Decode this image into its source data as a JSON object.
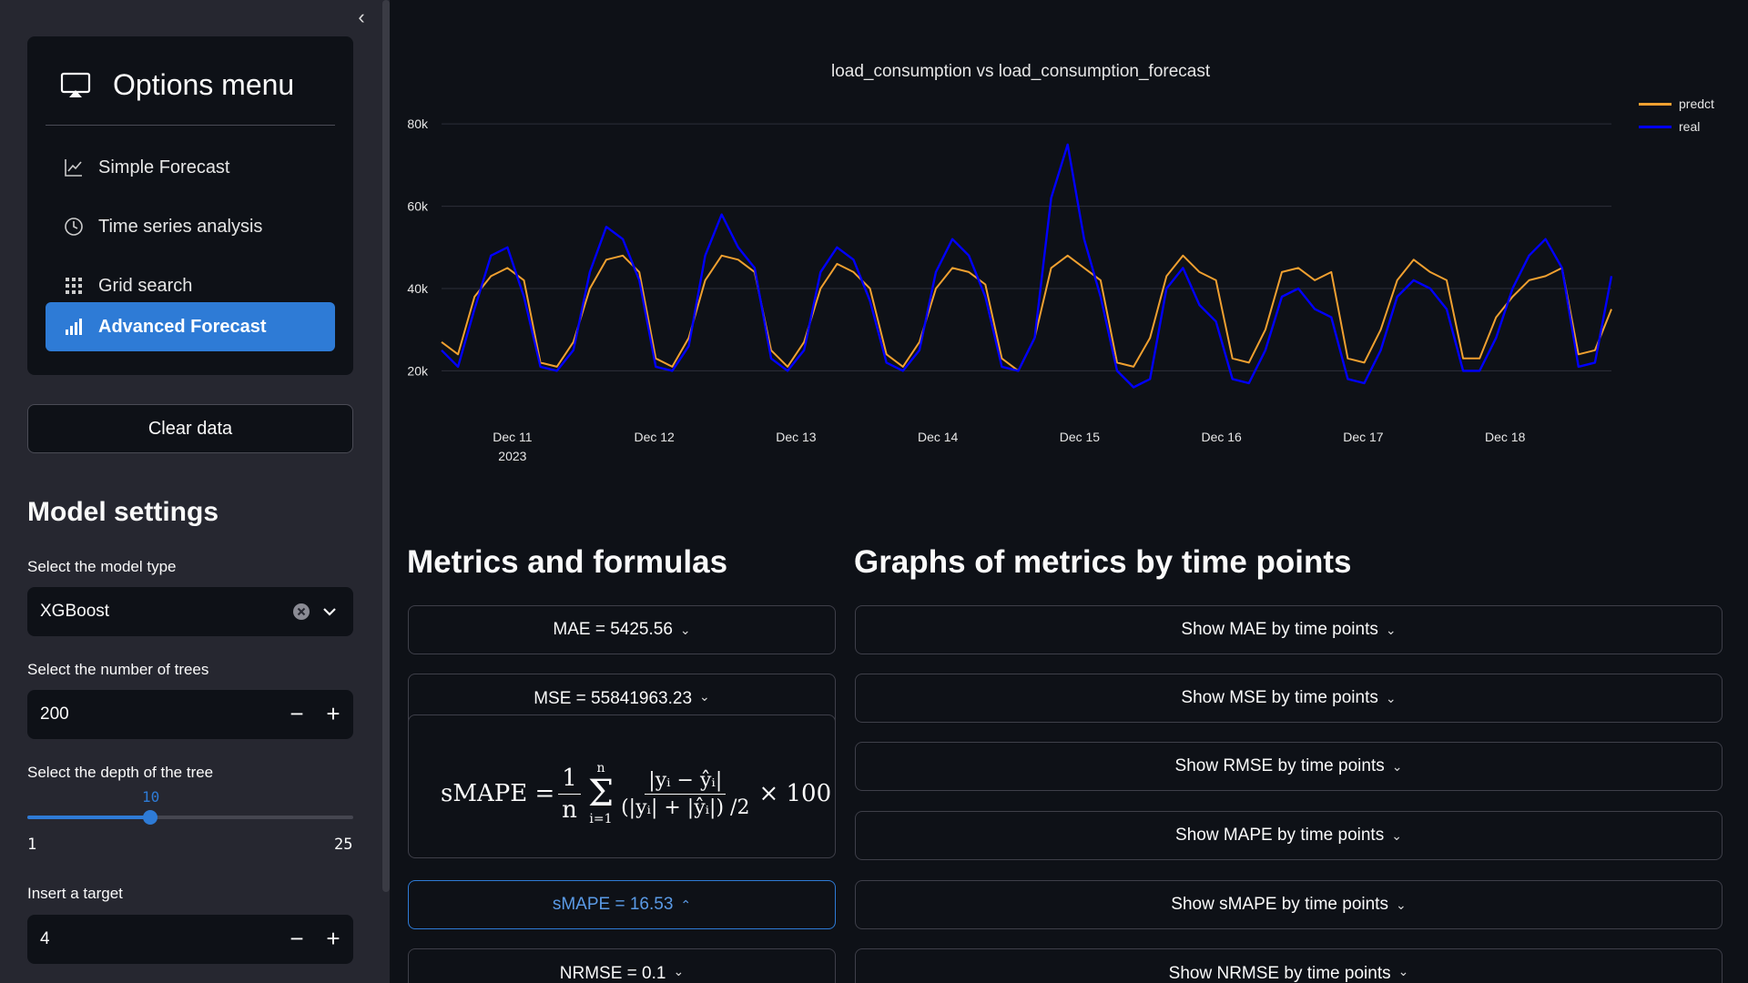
{
  "sidebar": {
    "menu_title": "Options menu",
    "items": [
      {
        "label": "Simple Forecast",
        "icon": "line-chart-icon"
      },
      {
        "label": "Time series analysis",
        "icon": "clock-icon"
      },
      {
        "label": "Grid search",
        "icon": "grid-icon"
      },
      {
        "label": "Advanced Forecast",
        "icon": "bar-chart-icon",
        "active": true
      }
    ],
    "clear_button": "Clear data",
    "model_settings": "Model settings",
    "model_type": {
      "label": "Select the model type",
      "value": "XGBoost"
    },
    "trees": {
      "label": "Select the number of trees",
      "value": "200"
    },
    "depth": {
      "label": "Select the depth of the tree",
      "value": "10",
      "min": "1",
      "max": "25"
    },
    "target": {
      "label": "Insert a target",
      "value": "4"
    }
  },
  "colors": {
    "accent": "#2e7bd6",
    "predict": "#f0a030",
    "real": "#0000ff",
    "background": "#0e1117",
    "sidebar": "#262730"
  },
  "chart_data": {
    "type": "line",
    "title": "load_consumption vs load_consumption_forecast",
    "x_ticks": [
      "Dec 11",
      "Dec 12",
      "Dec 13",
      "Dec 14",
      "Dec 15",
      "Dec 16",
      "Dec 17",
      "Dec 18"
    ],
    "x_year": "2023",
    "x_range": [
      "2023-12-10 12:00",
      "2023-12-18 18:00"
    ],
    "y_ticks": [
      "20k",
      "40k",
      "60k",
      "80k"
    ],
    "ylim": [
      15000,
      88000
    ],
    "grid": true,
    "legend_position": "top-right",
    "series": [
      {
        "name": "predct",
        "color": "#f0a030",
        "values": [
          27000,
          24000,
          38000,
          43000,
          45000,
          42000,
          22000,
          21000,
          27000,
          40000,
          47000,
          48000,
          44000,
          23000,
          21000,
          28000,
          42000,
          48000,
          47000,
          44000,
          25000,
          21000,
          27000,
          40000,
          46000,
          44000,
          40000,
          24000,
          21000,
          27000,
          40000,
          45000,
          44000,
          41000,
          23000,
          20000,
          28000,
          45000,
          48000,
          45000,
          42000,
          22000,
          21000,
          28000,
          43000,
          48000,
          44000,
          42000,
          23000,
          22000,
          30000,
          44000,
          45000,
          42000,
          44000,
          23000,
          22000,
          30000,
          42000,
          47000,
          44000,
          42000,
          23000,
          23000,
          33000,
          38000,
          42000,
          43000,
          45000,
          24000,
          25000,
          35000
        ]
      },
      {
        "name": "real",
        "color": "#0000ff",
        "values": [
          25000,
          21000,
          35000,
          48000,
          50000,
          38000,
          21000,
          20000,
          25000,
          44000,
          55000,
          52000,
          42000,
          21000,
          20000,
          26000,
          48000,
          58000,
          50000,
          45000,
          23000,
          20000,
          25000,
          44000,
          50000,
          47000,
          37000,
          22000,
          20000,
          25000,
          44000,
          52000,
          48000,
          38000,
          21000,
          20000,
          28000,
          62000,
          75000,
          52000,
          38000,
          20000,
          16000,
          18000,
          40000,
          45000,
          36000,
          32000,
          18000,
          17000,
          25000,
          38000,
          40000,
          35000,
          33000,
          18000,
          17000,
          25000,
          38000,
          42000,
          40000,
          35000,
          20000,
          20000,
          28000,
          40000,
          48000,
          52000,
          45000,
          21000,
          22000,
          43000
        ]
      }
    ]
  },
  "metrics": {
    "title": "Metrics and formulas",
    "items": [
      {
        "label": "MAE = 5425.56",
        "chev": "⌄"
      },
      {
        "label": "MSE = 55841963.23",
        "chev": "⌄"
      },
      {
        "label": "sMAPE = 16.53",
        "chev": "⌃"
      },
      {
        "label": "NRMSE = 0.1",
        "chev": "⌄"
      }
    ],
    "formula": {
      "lhs": "sMAPE =",
      "frac1_num": "1",
      "frac1_den": "n",
      "sum_top": "n",
      "sum_bottom": "i=1",
      "num": "|yᵢ − ŷᵢ|",
      "den": "(|yᵢ| + |ŷᵢ|) /2",
      "tail": "× 100"
    }
  },
  "graphs": {
    "title": "Graphs of metrics by time points",
    "items": [
      {
        "label": "Show MAE by time points",
        "chev": "⌄"
      },
      {
        "label": "Show MSE by time points",
        "chev": "⌄"
      },
      {
        "label": "Show RMSE by time points",
        "chev": "⌄"
      },
      {
        "label": "Show MAPE by time points",
        "chev": "⌄"
      },
      {
        "label": "Show sMAPE by time points",
        "chev": "⌄"
      },
      {
        "label": "Show NRMSE by time points",
        "chev": "⌄"
      }
    ]
  }
}
